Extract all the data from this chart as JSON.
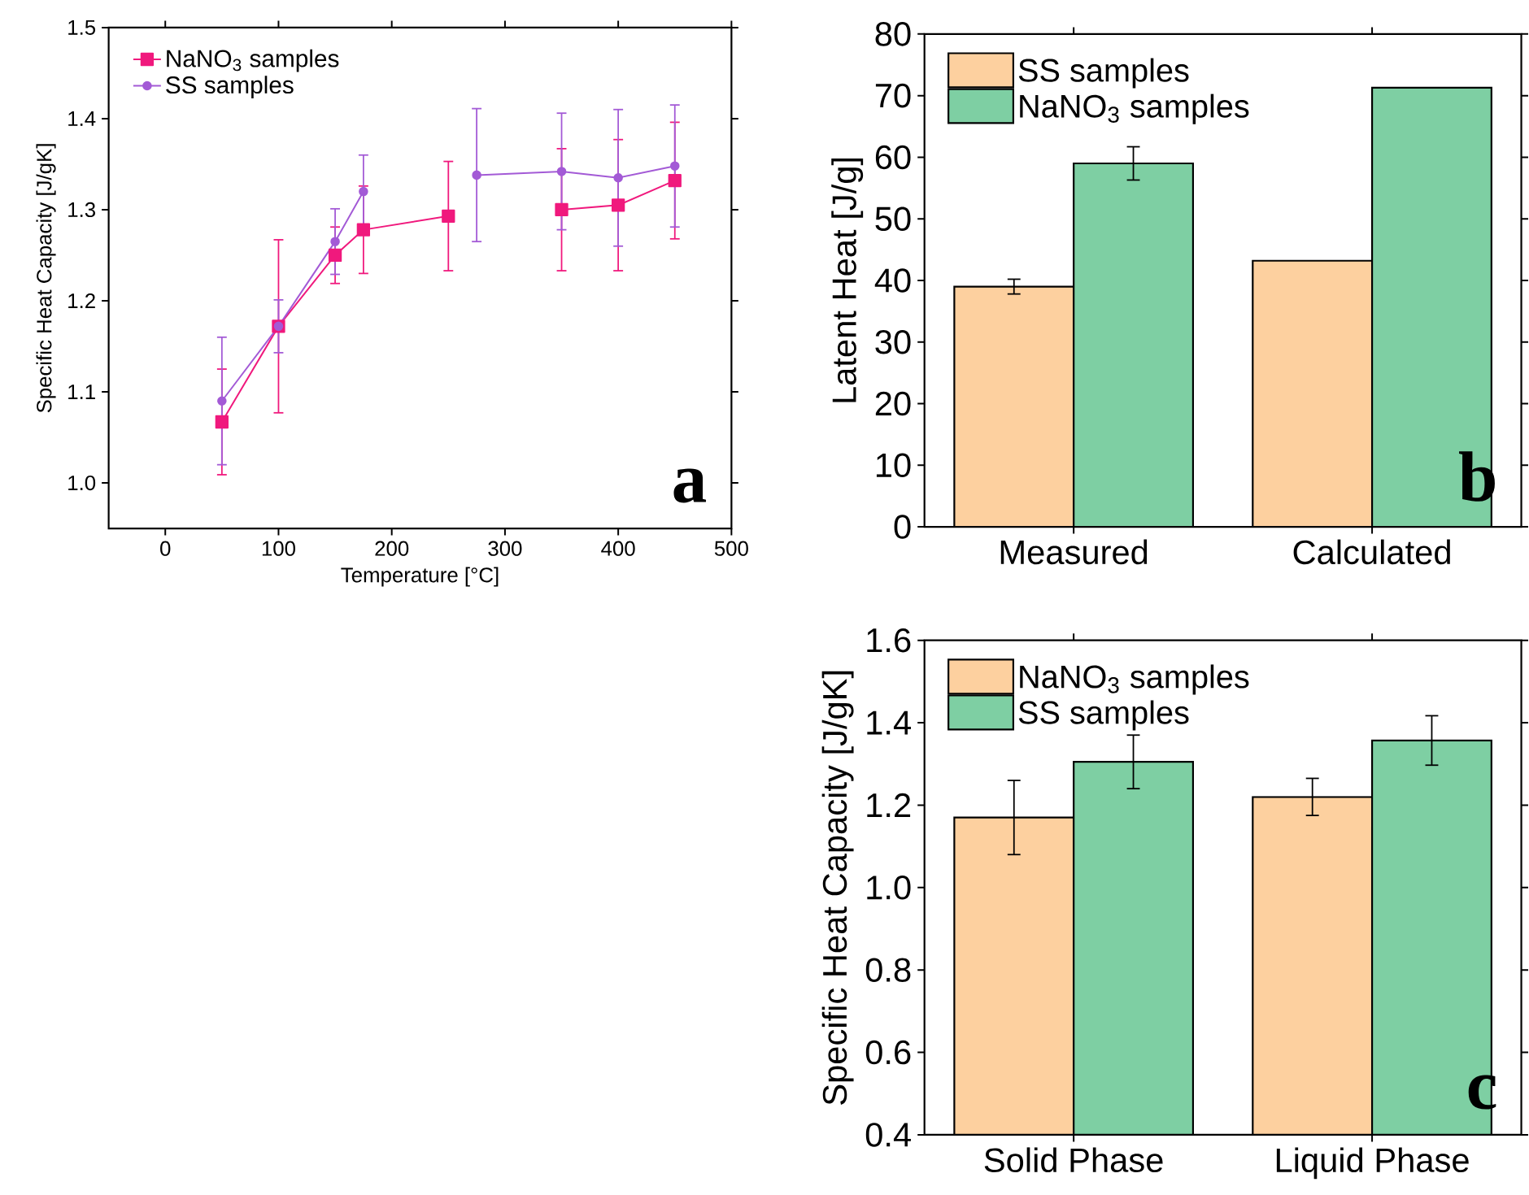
{
  "chart_data": [
    {
      "type": "line",
      "xlabel": "Temperature [°C]",
      "ylabel": "Specific Heat Capacity [J/gK]",
      "x": [
        50,
        100,
        150,
        175,
        250,
        275,
        350,
        400,
        450
      ],
      "xlim": [
        -50,
        500
      ],
      "xticks": [
        0,
        100,
        200,
        300,
        400,
        500
      ],
      "ylim": [
        0.95,
        1.5
      ],
      "yticks": [
        {
          "value": 1.0,
          "label": "1.0"
        },
        1.1,
        1.2,
        1.3,
        1.4,
        1.5
      ],
      "legend": "top left",
      "annotations": [
        "a"
      ],
      "series": [
        {
          "name": "NaNO$_{3}$ samples",
          "color": "#f0197d",
          "marker": "square",
          "values": [
            1.067,
            1.172,
            1.25,
            1.278,
            1.293,
            null,
            1.3,
            1.305,
            1.332
          ],
          "errors": [
            0.058,
            0.095,
            0.031,
            0.048,
            0.06,
            null,
            0.067,
            0.072,
            0.064
          ]
        },
        {
          "name": "SS samples",
          "color": "#a35ad6",
          "marker": "circle",
          "values": [
            1.09,
            1.172,
            1.265,
            1.32,
            null,
            1.338,
            1.342,
            1.335,
            1.348
          ],
          "errors": [
            0.07,
            0.029,
            0.036,
            0.04,
            null,
            0.073,
            0.064,
            0.075,
            0.067
          ]
        }
      ]
    },
    {
      "type": "bar",
      "ylabel": "Latent Heat [J/g]",
      "categories": [
        "Measured",
        "Calculated"
      ],
      "ylim": [
        0,
        80
      ],
      "yticks": [
        0,
        10,
        20,
        30,
        40,
        50,
        60,
        70,
        80
      ],
      "legend": "top left",
      "annotations": [
        "b"
      ],
      "series": [
        {
          "name": "SS samples",
          "color": "#fdd09f",
          "values": [
            39,
            43.2
          ],
          "errors": [
            1.2,
            null
          ]
        },
        {
          "name": "NaNO$_{3}$ samples",
          "color": "#7ecfa3",
          "values": [
            59,
            71.3
          ],
          "errors": [
            2.7,
            null
          ]
        }
      ]
    },
    {
      "type": "bar",
      "ylabel": "Specific Heat Capacity [J/gK]",
      "categories": [
        "Solid Phase",
        "Liquid Phase"
      ],
      "ylim": [
        0.4,
        1.6
      ],
      "yticks": [
        0.4,
        0.6,
        0.8,
        {
          "value": 1.0,
          "label": "1.0"
        },
        1.2,
        1.4,
        1.6
      ],
      "legend": "top left",
      "annotations": [
        "c"
      ],
      "series": [
        {
          "name": "NaNO$_{3}$ samples",
          "color": "#fdd09f",
          "values": [
            1.17,
            1.22
          ],
          "errors": [
            0.09,
            0.045
          ]
        },
        {
          "name": "SS samples",
          "color": "#7ecfa3",
          "values": [
            1.305,
            1.357
          ],
          "errors": [
            0.065,
            0.06
          ]
        }
      ]
    }
  ]
}
